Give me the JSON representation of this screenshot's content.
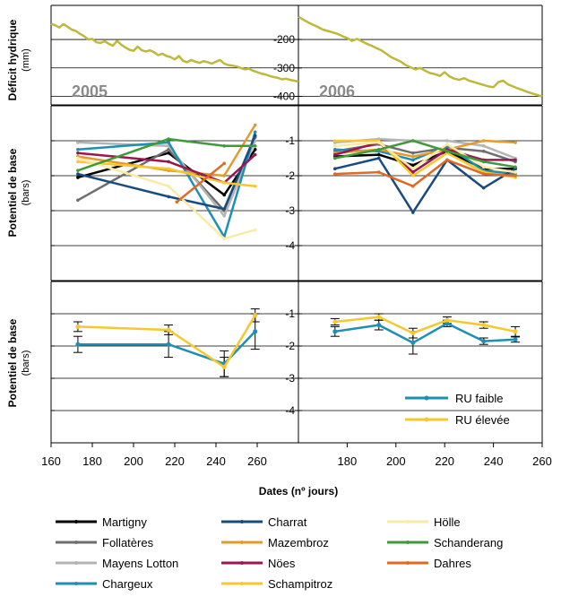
{
  "chart_data": [
    {
      "panel": "deficit",
      "type": "line",
      "ylabel": "Déficit hydrique",
      "yunit": "(mm)",
      "y_ticks": [
        "-200",
        "-300",
        "-400"
      ],
      "y_tick_values": [
        -200,
        -300,
        -400
      ],
      "ylim": [
        -430,
        -80
      ],
      "color": "#bfb83a",
      "left": {
        "year_label": "2005",
        "x": [
          160,
          162,
          164,
          166,
          168,
          170,
          172,
          174,
          176,
          178,
          180,
          182,
          184,
          186,
          188,
          190,
          192,
          194,
          196,
          198,
          200,
          202,
          204,
          206,
          208,
          210,
          212,
          214,
          216,
          218,
          220,
          222,
          224,
          226,
          228,
          230,
          232,
          234,
          236,
          238,
          240,
          242,
          244,
          246,
          248,
          250,
          252,
          254,
          256,
          258,
          260,
          262,
          264,
          266,
          268,
          270,
          272,
          274,
          276,
          278,
          280
        ],
        "y": [
          -145,
          -150,
          -158,
          -146,
          -155,
          -165,
          -170,
          -180,
          -188,
          -200,
          -198,
          -210,
          -212,
          -206,
          -215,
          -222,
          -205,
          -218,
          -228,
          -236,
          -240,
          -225,
          -238,
          -242,
          -238,
          -245,
          -255,
          -250,
          -258,
          -262,
          -270,
          -258,
          -275,
          -280,
          -272,
          -278,
          -282,
          -276,
          -280,
          -285,
          -278,
          -272,
          -285,
          -290,
          -292,
          -295,
          -300,
          -305,
          -303,
          -310,
          -315,
          -320,
          -323,
          -328,
          -332,
          -335,
          -340,
          -338,
          -342,
          -345,
          -348
        ]
      },
      "right": {
        "year_label": "2006",
        "x": [
          160,
          162,
          164,
          166,
          168,
          170,
          172,
          174,
          176,
          178,
          180,
          182,
          184,
          186,
          188,
          190,
          192,
          194,
          196,
          198,
          200,
          202,
          204,
          206,
          208,
          210,
          212,
          214,
          216,
          218,
          220,
          222,
          224,
          226,
          228,
          230,
          232,
          234,
          236,
          238,
          240,
          242,
          244,
          246,
          248,
          250,
          252,
          254,
          256,
          258,
          260
        ],
        "y": [
          -120,
          -130,
          -140,
          -148,
          -156,
          -165,
          -170,
          -175,
          -180,
          -188,
          -195,
          -205,
          -198,
          -206,
          -215,
          -222,
          -230,
          -238,
          -250,
          -262,
          -270,
          -278,
          -290,
          -298,
          -305,
          -300,
          -310,
          -318,
          -322,
          -328,
          -315,
          -330,
          -338,
          -342,
          -336,
          -345,
          -350,
          -355,
          -360,
          -365,
          -368,
          -350,
          -345,
          -358,
          -365,
          -372,
          -378,
          -385,
          -390,
          -395,
          -400
        ]
      }
    },
    {
      "panel": "sites",
      "type": "line",
      "ylabel": "Potentiel de base",
      "yunit": "(bars)",
      "y_ticks": [
        "-1",
        "-2",
        "-3",
        "-4"
      ],
      "y_tick_values": [
        -1,
        -2,
        -3,
        -4
      ],
      "ylim": [
        -5,
        0
      ],
      "xlim": [
        160,
        280
      ],
      "series": [
        {
          "name": "Martigny",
          "color": "#000000",
          "left": {
            "x": [
              173,
              217,
              244,
              259
            ],
            "y": [
              -2.05,
              -1.35,
              -2.55,
              -1.25
            ]
          },
          "right": {
            "x": [
              175,
              193,
              207,
              221,
              236,
              249
            ],
            "y": [
              -1.45,
              -1.4,
              -1.7,
              -1.3,
              -1.8,
              -1.8
            ]
          }
        },
        {
          "name": "Follatères",
          "color": "#6e6e6e",
          "left": {
            "x": [
              173,
              217,
              244,
              259
            ],
            "y": [
              -2.7,
              -1.25,
              -3.0,
              -0.9
            ]
          },
          "right": {
            "x": [
              175,
              193,
              207,
              221,
              236,
              249
            ],
            "y": [
              -1.3,
              -1.1,
              -1.35,
              -1.2,
              -1.3,
              -1.6
            ]
          }
        },
        {
          "name": "Mayens Lotton",
          "color": "#b4b4b4",
          "left": {
            "x": [
              173,
              217,
              244,
              259
            ],
            "y": [
              -1.05,
              -1.15,
              -3.15,
              -1.0
            ]
          },
          "right": {
            "x": [
              175,
              193,
              207,
              221,
              236,
              249
            ],
            "y": [
              -1.05,
              -0.95,
              -1.0,
              -1.0,
              -1.15,
              -1.5
            ]
          }
        },
        {
          "name": "Chargeux",
          "color": "#1e8fb4",
          "left": {
            "x": [
              173,
              217,
              244,
              259
            ],
            "y": [
              -1.25,
              -1.05,
              -3.75,
              -0.75
            ]
          },
          "right": {
            "x": [
              175,
              193,
              207,
              221,
              236,
              249
            ],
            "y": [
              -1.25,
              -1.3,
              -1.55,
              -1.15,
              -1.85,
              -1.95
            ]
          }
        },
        {
          "name": "Charrat",
          "color": "#184c7e",
          "left": {
            "x": [
              173,
              217,
              244,
              259
            ],
            "y": [
              -1.95,
              -2.6,
              -2.95,
              -0.85
            ]
          },
          "right": {
            "x": [
              175,
              193,
              207,
              221,
              236,
              249
            ],
            "y": [
              -1.8,
              -1.5,
              -3.05,
              -1.55,
              -2.35,
              -1.8
            ]
          }
        },
        {
          "name": "Mazembroz",
          "color": "#e59a2e",
          "left": {
            "x": [
              173,
              217,
              244,
              259
            ],
            "y": [
              -1.45,
              -1.85,
              -2.0,
              -0.55
            ]
          },
          "right": {
            "x": [
              175,
              193,
              207,
              221,
              236,
              249
            ],
            "y": [
              -1.35,
              -1.25,
              -1.45,
              -1.25,
              -1.0,
              -1.05
            ]
          }
        },
        {
          "name": "Nöes",
          "color": "#9a1752",
          "left": {
            "x": [
              173,
              217,
              244,
              259
            ],
            "y": [
              -1.35,
              -1.6,
              -2.2,
              -1.4
            ]
          },
          "right": {
            "x": [
              175,
              193,
              207,
              221,
              236,
              249
            ],
            "y": [
              -1.4,
              -1.05,
              -1.9,
              -1.25,
              -1.55,
              -1.55
            ]
          }
        },
        {
          "name": "Schampitroz",
          "color": "#f6c82e",
          "left": {
            "x": [
              173,
              217,
              244,
              259
            ],
            "y": [
              -1.6,
              -1.8,
              -2.2,
              -2.3
            ]
          },
          "right": {
            "x": [
              175,
              193,
              207,
              221,
              236,
              249
            ],
            "y": [
              -1.0,
              -1.0,
              -2.0,
              -1.35,
              -1.9,
              -2.05
            ]
          }
        },
        {
          "name": "Hölle",
          "color": "#fbeaa6",
          "left": {
            "x": [
              173,
              217,
              244,
              259
            ],
            "y": [
              -1.5,
              -2.3,
              -3.8,
              -3.55
            ]
          },
          "right": {
            "x": [
              175,
              193,
              207,
              221,
              236,
              249
            ],
            "y": [
              -1.15,
              -1.05,
              -1.8,
              -1.1,
              -1.75,
              -1.9
            ]
          }
        },
        {
          "name": "Schanderang",
          "color": "#3f9a3a",
          "left": {
            "x": [
              173,
              217,
              244,
              259
            ],
            "y": [
              -1.85,
              -0.95,
              -1.15,
              -1.15
            ]
          },
          "right": {
            "x": [
              175,
              193,
              207,
              221,
              236,
              249
            ],
            "y": [
              -1.5,
              -1.25,
              -1.0,
              -1.3,
              -1.6,
              -1.75
            ]
          }
        },
        {
          "name": "Dahres",
          "color": "#e06a22",
          "left": {
            "x": [
              221,
              244
            ],
            "y": [
              -2.75,
              -1.65
            ]
          },
          "right": {
            "x": [
              175,
              193,
              207,
              221,
              236,
              249
            ],
            "y": [
              -1.95,
              -1.9,
              -2.3,
              -1.55,
              -1.95,
              -2.0
            ]
          }
        }
      ]
    },
    {
      "panel": "ru",
      "type": "line",
      "ylabel": "Potentiel de base",
      "yunit": "(bars)",
      "y_ticks": [
        "-1",
        "-2",
        "-3",
        "-4"
      ],
      "y_tick_values": [
        -1,
        -2,
        -3,
        -4
      ],
      "ylim": [
        -5,
        0
      ],
      "xlabel": "Dates (nº jours)",
      "left_x_ticks": [
        160,
        180,
        200,
        220,
        240,
        260
      ],
      "right_x_ticks": [
        180,
        200,
        220,
        240,
        260
      ],
      "series": [
        {
          "name": "RU faible",
          "color": "#1e8fb4",
          "left": {
            "x": [
              173,
              217,
              244,
              259
            ],
            "y": [
              -1.95,
              -1.95,
              -2.55,
              -1.55
            ],
            "err": [
              0.25,
              0.4,
              0.4,
              0.55
            ]
          },
          "right": {
            "x": [
              175,
              193,
              207,
              221,
              236,
              249
            ],
            "y": [
              -1.55,
              -1.35,
              -1.9,
              -1.3,
              -1.85,
              -1.8
            ],
            "err": [
              0.15,
              0.15,
              0.35,
              0.1,
              0.1,
              0.08
            ]
          }
        },
        {
          "name": "RU élevée",
          "color": "#f6c82e",
          "left": {
            "x": [
              173,
              217,
              244,
              259
            ],
            "y": [
              -1.4,
              -1.5,
              -2.65,
              -1.05
            ],
            "err": [
              0.15,
              0.15,
              0.3,
              0.2
            ]
          },
          "right": {
            "x": [
              175,
              193,
              207,
              221,
              236,
              249
            ],
            "y": [
              -1.25,
              -1.1,
              -1.6,
              -1.2,
              -1.35,
              -1.55
            ],
            "err": [
              0.1,
              0.1,
              0.15,
              0.1,
              0.1,
              0.15
            ]
          }
        }
      ]
    }
  ]
}
